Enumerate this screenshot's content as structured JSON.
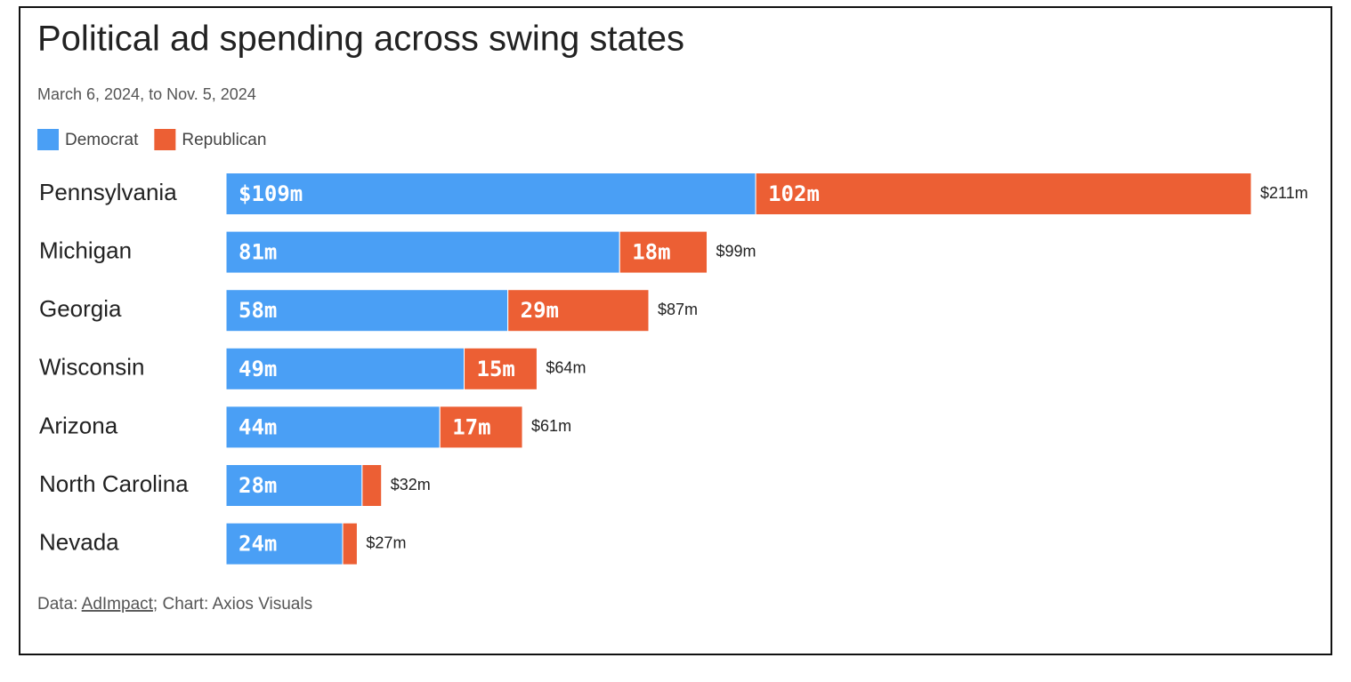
{
  "chart_data": {
    "type": "stacked-bar-horizontal",
    "title": "Political ad spending across swing states",
    "subtitle": "March 6, 2024, to Nov. 5, 2024",
    "categories": [
      "Pennsylvania",
      "Michigan",
      "Georgia",
      "Wisconsin",
      "Arizona",
      "North Carolina",
      "Nevada"
    ],
    "series": [
      {
        "name": "Democrat",
        "color": "#4a9ff5",
        "values": [
          109,
          81,
          58,
          49,
          44,
          28,
          24
        ],
        "value_labels": [
          "$109m",
          "81m",
          "58m",
          "49m",
          "44m",
          "28m",
          "24m"
        ]
      },
      {
        "name": "Republican",
        "color": "#ec5f34",
        "values": [
          102,
          18,
          29,
          15,
          17,
          4,
          3
        ],
        "value_labels": [
          "102m",
          "18m",
          "29m",
          "15m",
          "17m",
          null,
          null
        ]
      }
    ],
    "totals": {
      "values": [
        211,
        99,
        87,
        64,
        61,
        32,
        27
      ],
      "value_labels": [
        "$211m",
        "$99m",
        "$87m",
        "$64m",
        "$61m",
        "$32m",
        "$27m"
      ]
    },
    "legend": "top-left",
    "source": {
      "prefix": "Data: ",
      "link": "AdImpact",
      "suffix": "; Chart: Axios Visuals"
    }
  }
}
